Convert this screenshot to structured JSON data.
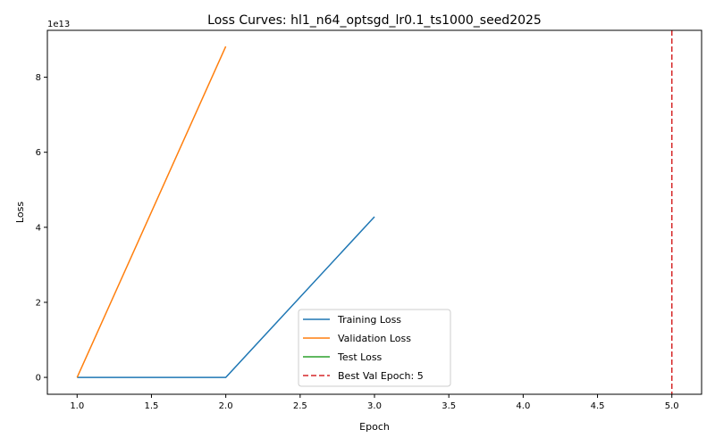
{
  "chart_data": {
    "type": "line",
    "title": "Loss Curves: hl1_n64_optsgd_lr0.1_ts1000_seed2025",
    "xlabel": "Epoch",
    "ylabel": "Loss",
    "y_offset_label": "1e13",
    "xlim": [
      0.8,
      5.2
    ],
    "ylim": [
      -0.45,
      9.25
    ],
    "y_scale_factor": 10000000000000.0,
    "x_ticks": [
      1.0,
      1.5,
      2.0,
      2.5,
      3.0,
      3.5,
      4.0,
      4.5,
      5.0
    ],
    "x_tick_labels": [
      "1.0",
      "1.5",
      "2.0",
      "2.5",
      "3.0",
      "3.5",
      "4.0",
      "4.5",
      "5.0"
    ],
    "y_ticks": [
      0,
      2,
      4,
      6,
      8
    ],
    "y_tick_labels": [
      "0",
      "2",
      "4",
      "6",
      "8"
    ],
    "grid": false,
    "legend_position": "lower-center",
    "series": [
      {
        "name": "Training Loss",
        "color": "#1f77b4",
        "style": "solid",
        "x": [
          1,
          2,
          3
        ],
        "y": [
          0,
          0,
          4.28
        ]
      },
      {
        "name": "Validation Loss",
        "color": "#ff7f0e",
        "style": "solid",
        "x": [
          1,
          2
        ],
        "y": [
          0,
          8.82
        ]
      },
      {
        "name": "Test Loss",
        "color": "#2ca02c",
        "style": "solid",
        "x": [],
        "y": []
      }
    ],
    "vlines": [
      {
        "name": "Best Val Epoch: 5",
        "x": 5,
        "color": "#d62728",
        "style": "dashed"
      }
    ]
  }
}
